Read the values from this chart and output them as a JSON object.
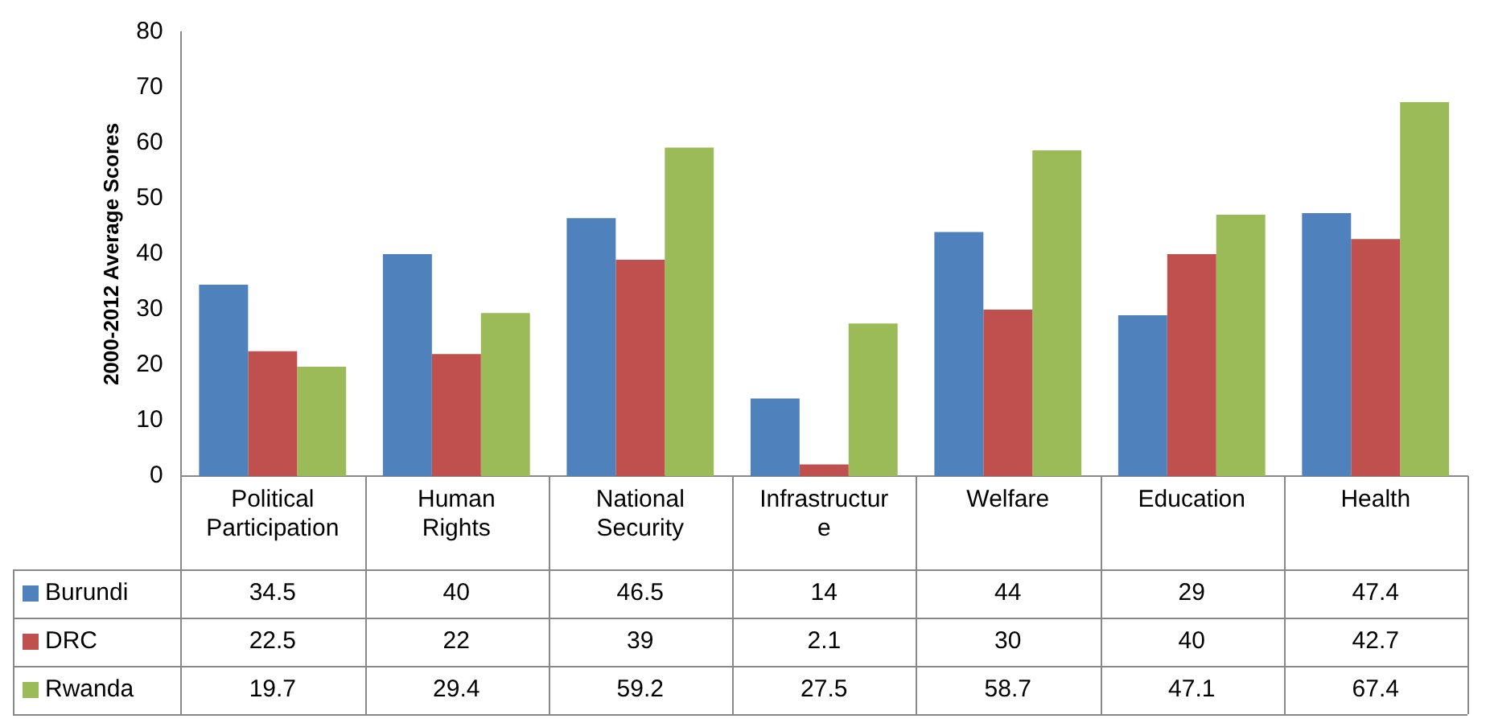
{
  "chart_data": {
    "type": "bar",
    "ylabel": "2000-2012 Average Scores",
    "categories": [
      "Political Participation",
      "Human Rights",
      "National Security",
      "Infrastructure",
      "Welfare",
      "Education",
      "Health"
    ],
    "series": [
      {
        "name": "Burundi",
        "color": "#4f81bd",
        "values": [
          34.5,
          40,
          46.5,
          14,
          44,
          29,
          47.4
        ]
      },
      {
        "name": "DRC",
        "color": "#c0504d",
        "values": [
          22.5,
          22,
          39,
          2.1,
          30,
          40,
          42.7
        ]
      },
      {
        "name": "Rwanda",
        "color": "#9bbb59",
        "values": [
          19.7,
          29.4,
          59.2,
          27.5,
          58.7,
          47.1,
          67.4
        ]
      }
    ],
    "ylim": [
      0,
      80
    ],
    "yticks": [
      0,
      10,
      20,
      30,
      40,
      50,
      60,
      70,
      80
    ],
    "grid": false,
    "legend": "bottom",
    "data_labels": true
  }
}
